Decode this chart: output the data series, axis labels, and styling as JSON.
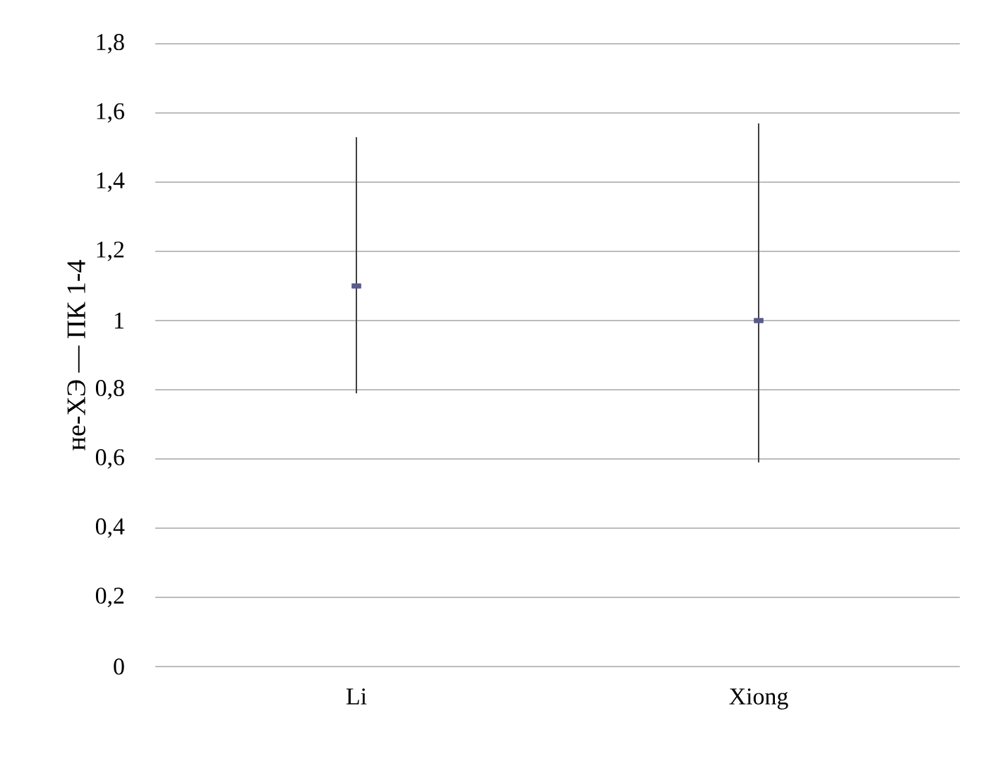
{
  "chart_data": {
    "type": "scatter",
    "ylabel": "не-ХЭ — ПК 1-4",
    "categories": [
      "Li",
      "Xiong"
    ],
    "values": [
      1.1,
      1.0
    ],
    "errors": [
      [
        0.79,
        1.53
      ],
      [
        0.59,
        1.57
      ]
    ],
    "color": "#5a5a8c",
    "marker": "square",
    "ylim": [
      0,
      1.8
    ],
    "yticks": [
      0,
      {
        "value": 0.2,
        "label": "0,2"
      },
      {
        "value": 0.4,
        "label": "0,4"
      },
      {
        "value": 0.6,
        "label": "0,6"
      },
      {
        "value": 0.8,
        "label": "0,8"
      },
      1,
      {
        "value": 1.2,
        "label": "1,2"
      },
      {
        "value": 1.4,
        "label": "1,4"
      },
      {
        "value": 1.6,
        "label": "1,6"
      },
      {
        "value": 1.8,
        "label": "1,8"
      }
    ],
    "grid": "y"
  }
}
